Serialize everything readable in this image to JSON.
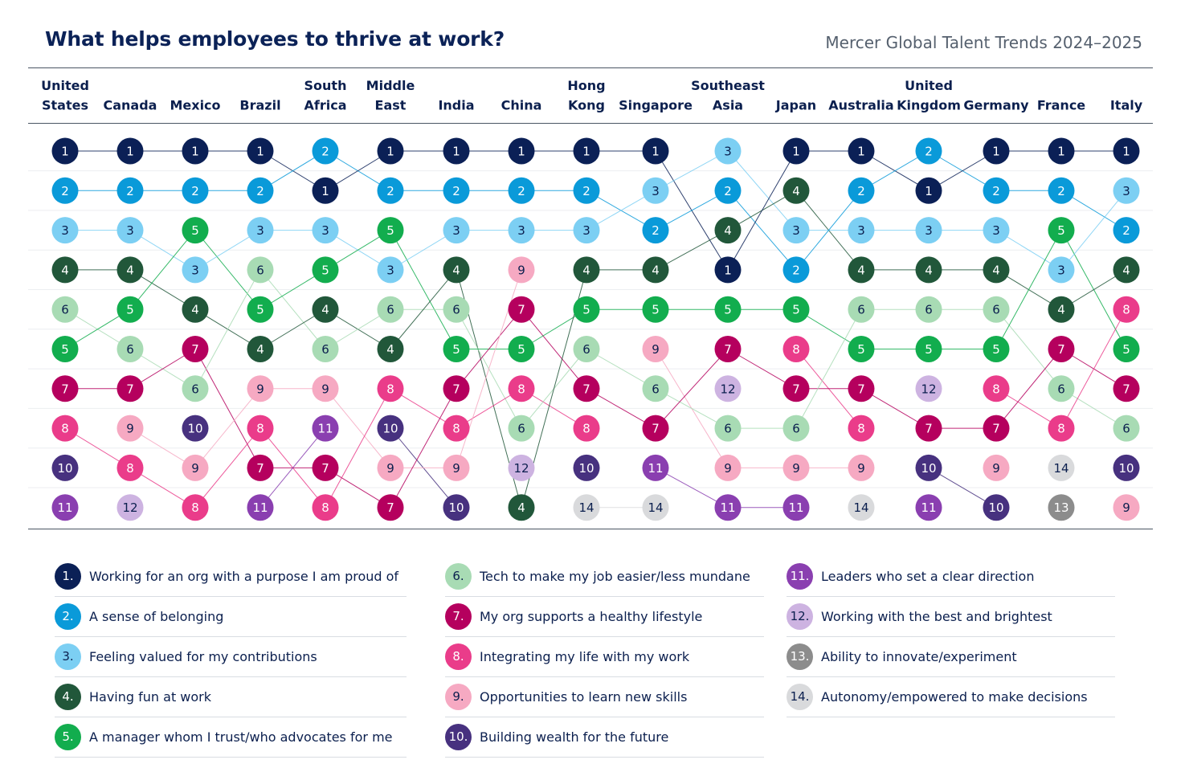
{
  "title": "What helps employees to thrive at work?",
  "source": "Mercer Global Talent Trends 2024–2025",
  "chart_data": {
    "type": "bump",
    "countries": [
      {
        "name": [
          "United",
          "States"
        ],
        "ranks": [
          1,
          2,
          3,
          4,
          6,
          5,
          7,
          8,
          10,
          11
        ]
      },
      {
        "name": [
          "",
          "Canada"
        ],
        "ranks": [
          1,
          2,
          3,
          4,
          5,
          6,
          7,
          9,
          8,
          12
        ]
      },
      {
        "name": [
          "",
          "Mexico"
        ],
        "ranks": [
          1,
          2,
          5,
          3,
          4,
          7,
          6,
          10,
          9,
          8
        ]
      },
      {
        "name": [
          "",
          "Brazil"
        ],
        "ranks": [
          1,
          2,
          3,
          6,
          5,
          4,
          9,
          8,
          7,
          11
        ]
      },
      {
        "name": [
          "South",
          "Africa"
        ],
        "ranks": [
          2,
          1,
          3,
          5,
          4,
          6,
          9,
          11,
          7,
          8
        ]
      },
      {
        "name": [
          "Middle",
          "East"
        ],
        "ranks": [
          1,
          2,
          5,
          3,
          6,
          4,
          8,
          10,
          9,
          7
        ]
      },
      {
        "name": [
          "",
          "India"
        ],
        "ranks": [
          1,
          2,
          3,
          4,
          6,
          5,
          7,
          8,
          9,
          10
        ]
      },
      {
        "name": [
          "",
          "China"
        ],
        "ranks": [
          1,
          2,
          3,
          9,
          7,
          5,
          8,
          6,
          12,
          4
        ]
      },
      {
        "name": [
          "Hong",
          "Kong"
        ],
        "ranks": [
          1,
          2,
          3,
          4,
          5,
          6,
          7,
          8,
          10,
          14
        ]
      },
      {
        "name": [
          "",
          "Singapore"
        ],
        "ranks": [
          1,
          3,
          2,
          4,
          5,
          9,
          6,
          7,
          11,
          14
        ]
      },
      {
        "name": [
          "Southeast",
          "Asia"
        ],
        "ranks": [
          3,
          2,
          4,
          1,
          5,
          7,
          12,
          6,
          9,
          11
        ]
      },
      {
        "name": [
          "",
          "Japan"
        ],
        "ranks": [
          1,
          4,
          3,
          2,
          5,
          8,
          7,
          6,
          9,
          11
        ]
      },
      {
        "name": [
          "",
          "Australia"
        ],
        "ranks": [
          1,
          2,
          3,
          4,
          6,
          5,
          7,
          8,
          9,
          14
        ]
      },
      {
        "name": [
          "United",
          "Kingdom"
        ],
        "ranks": [
          2,
          1,
          3,
          4,
          6,
          5,
          12,
          7,
          10,
          11
        ]
      },
      {
        "name": [
          "",
          "Germany"
        ],
        "ranks": [
          1,
          2,
          3,
          4,
          6,
          5,
          8,
          7,
          9,
          10
        ]
      },
      {
        "name": [
          "",
          "France"
        ],
        "ranks": [
          1,
          2,
          5,
          3,
          4,
          7,
          6,
          8,
          14,
          13
        ]
      },
      {
        "name": [
          "",
          "Italy"
        ],
        "ranks": [
          1,
          3,
          2,
          4,
          8,
          5,
          7,
          6,
          10,
          9
        ]
      }
    ],
    "factors": [
      {
        "id": 1,
        "label": "1.",
        "text": "Working for an org with a purpose I am proud of",
        "color": "#0b2056",
        "text_color": "#ffffff"
      },
      {
        "id": 2,
        "label": "2.",
        "text": "A sense of belonging",
        "color": "#0a9ad9",
        "text_color": "#ffffff"
      },
      {
        "id": 3,
        "label": "3.",
        "text": "Feeling valued for my contributions",
        "color": "#7ccff3",
        "text_color": "#0b1f4e"
      },
      {
        "id": 4,
        "label": "4.",
        "text": "Having fun at work",
        "color": "#21573a",
        "text_color": "#ffffff"
      },
      {
        "id": 5,
        "label": "5.",
        "text": "A manager whom I trust/who advocates for me",
        "color": "#12ad4e",
        "text_color": "#ffffff"
      },
      {
        "id": 6,
        "label": "6.",
        "text": "Tech to make my job easier/less mundane",
        "color": "#a8dbb4",
        "text_color": "#0b1f4e"
      },
      {
        "id": 7,
        "label": "7.",
        "text": "My org supports a healthy lifestyle",
        "color": "#b5005e",
        "text_color": "#ffffff"
      },
      {
        "id": 8,
        "label": "8.",
        "text": "Integrating my life with my work",
        "color": "#ea3c8a",
        "text_color": "#ffffff"
      },
      {
        "id": 9,
        "label": "9.",
        "text": "Opportunities to learn new skills",
        "color": "#f6a9c2",
        "text_color": "#0b1f4e"
      },
      {
        "id": 10,
        "label": "10.",
        "text": "Building wealth for the future",
        "color": "#47317f",
        "text_color": "#ffffff"
      },
      {
        "id": 11,
        "label": "11.",
        "text": "Leaders who set a clear direction",
        "color": "#8a3fb0",
        "text_color": "#ffffff"
      },
      {
        "id": 12,
        "label": "12.",
        "text": "Working with the best and brightest",
        "color": "#cdb3e1",
        "text_color": "#0b1f4e"
      },
      {
        "id": 13,
        "label": "13.",
        "text": "Ability to innovate/experiment",
        "color": "#8c8c8c",
        "text_color": "#ffffff"
      },
      {
        "id": 14,
        "label": "14.",
        "text": "Autonomy/empowered to make decisions",
        "color": "#d9dadc",
        "text_color": "#0b1f4e"
      }
    ]
  }
}
